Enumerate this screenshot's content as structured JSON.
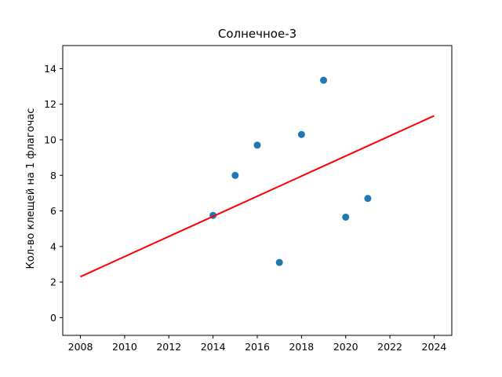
{
  "chart_data": {
    "type": "scatter",
    "title": "Солнечное-3",
    "xlabel": "",
    "ylabel": "Кол-во клещей на 1 флагочас",
    "xlim": [
      2007.2,
      2024.8
    ],
    "ylim": [
      -1.0,
      15.3
    ],
    "x_ticks": [
      "2008",
      "2010",
      "2012",
      "2014",
      "2016",
      "2018",
      "2020",
      "2022",
      "2024"
    ],
    "y_ticks": [
      "0",
      "2",
      "4",
      "6",
      "8",
      "10",
      "12",
      "14"
    ],
    "grid": false,
    "series": [
      {
        "kind": "scatter",
        "color": "#1f77b4",
        "points": [
          {
            "x": 2014,
            "y": 5.75
          },
          {
            "x": 2015,
            "y": 8.0
          },
          {
            "x": 2016,
            "y": 9.7
          },
          {
            "x": 2017,
            "y": 3.1
          },
          {
            "x": 2018,
            "y": 10.3
          },
          {
            "x": 2019,
            "y": 13.35
          },
          {
            "x": 2020,
            "y": 5.65
          },
          {
            "x": 2021,
            "y": 6.7
          }
        ]
      },
      {
        "kind": "line",
        "color": "#ff0000",
        "points": [
          {
            "x": 2008,
            "y": 2.3
          },
          {
            "x": 2024,
            "y": 11.35
          }
        ]
      }
    ]
  }
}
